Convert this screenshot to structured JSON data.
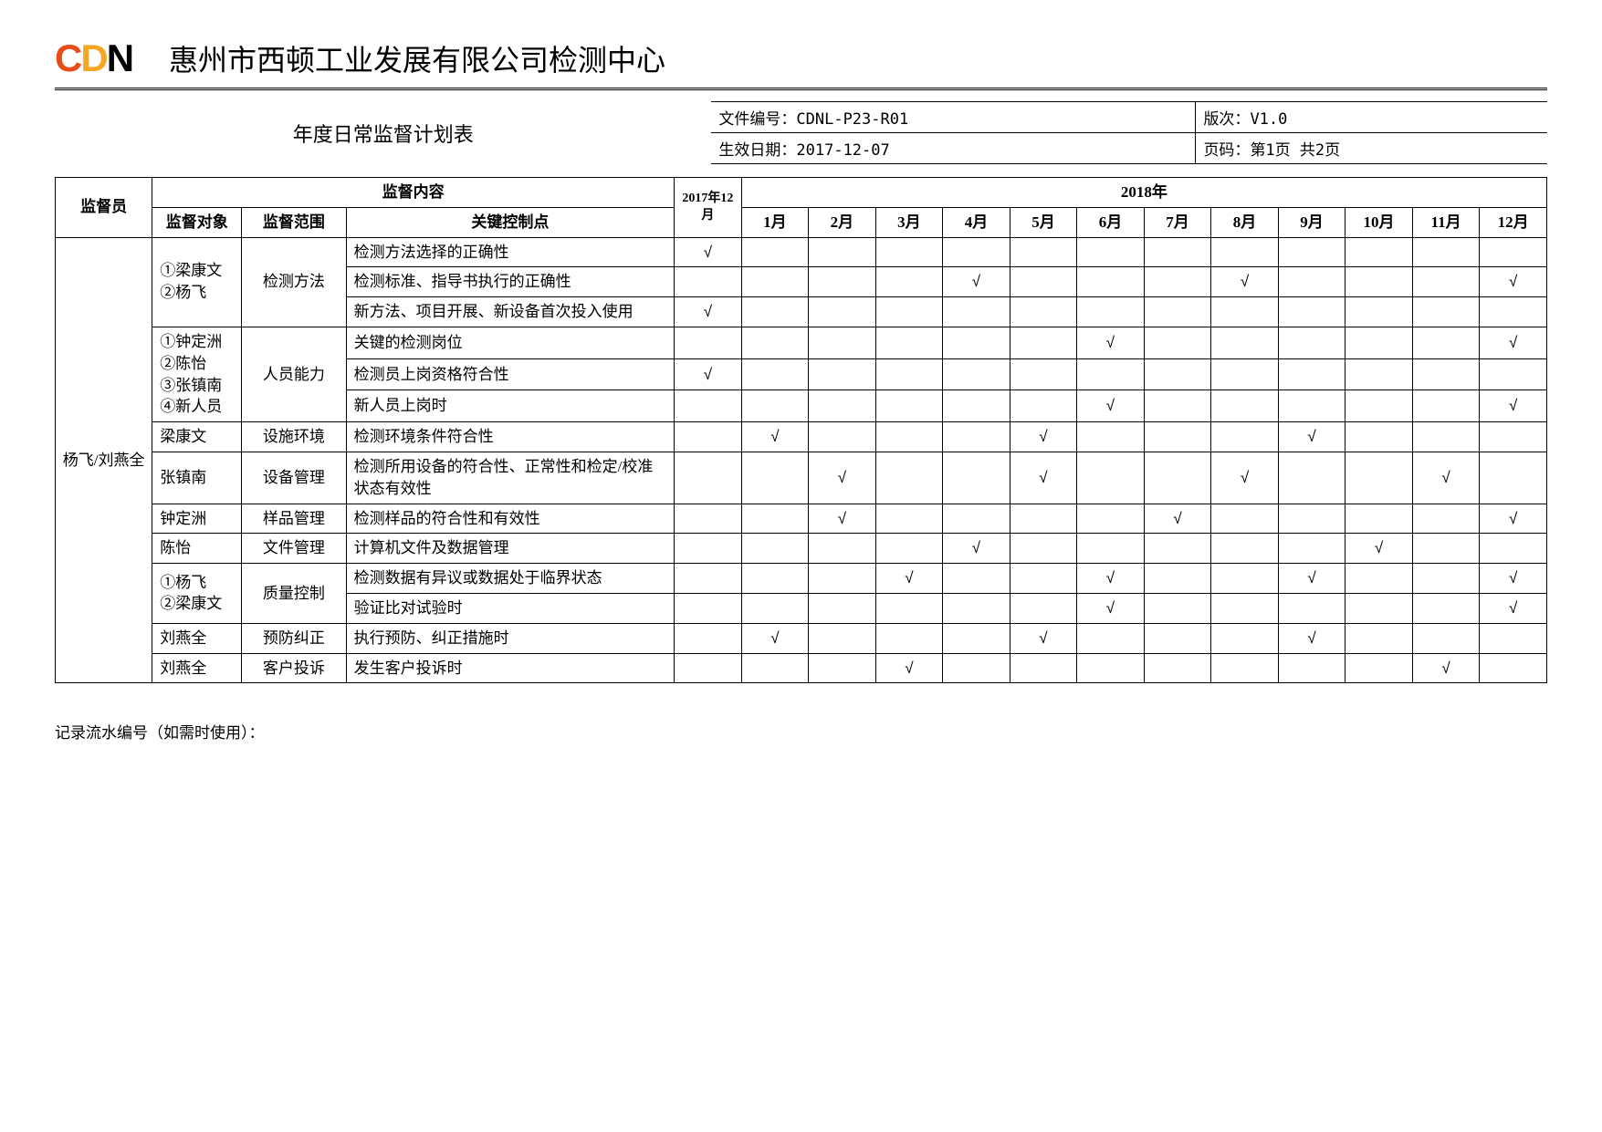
{
  "header": {
    "org_title": "惠州市西顿工业发展有限公司检测中心"
  },
  "meta": {
    "form_title": "年度日常监督计划表",
    "doc_no_label": "文件编号：",
    "doc_no": "CDNL-P23-R01",
    "version_label": "版次：",
    "version": "V1.0",
    "eff_date_label": "生效日期：",
    "eff_date": "2017-12-07",
    "page_label": "页码：",
    "page": "第1页 共2页"
  },
  "colhead": {
    "supervisor": "监督员",
    "content": "监督内容",
    "object": "监督对象",
    "scope": "监督范围",
    "keypoint": "关键控制点",
    "dec2017": "2017年12月",
    "year2018": "2018年",
    "m1": "1月",
    "m2": "2月",
    "m3": "3月",
    "m4": "4月",
    "m5": "5月",
    "m6": "6月",
    "m7": "7月",
    "m8": "8月",
    "m9": "9月",
    "m10": "10月",
    "m11": "11月",
    "m12": "12月"
  },
  "supervisor_name": "杨飞/刘燕全",
  "check": "√",
  "rows": [
    {
      "obj": "①梁康文\n②杨飞",
      "scope": "检测方法",
      "key": "检测方法选择的正确性",
      "marks": {
        "d17": true
      }
    },
    {
      "key": "检测标准、指导书执行的正确性",
      "marks": {
        "m4": true,
        "m8": true,
        "m12": true
      }
    },
    {
      "key": "新方法、项目开展、新设备首次投入使用",
      "marks": {
        "d17": true
      }
    },
    {
      "obj": "①钟定洲\n②陈怡\n③张镇南\n④新人员",
      "scope": "人员能力",
      "key": "关键的检测岗位",
      "marks": {
        "m6": true,
        "m12": true
      }
    },
    {
      "key": "检测员上岗资格符合性",
      "marks": {
        "d17": true
      }
    },
    {
      "key": "新人员上岗时",
      "marks": {
        "m6": true,
        "m12": true
      }
    },
    {
      "obj": "梁康文",
      "scope": "设施环境",
      "key": "检测环境条件符合性",
      "marks": {
        "m1": true,
        "m5": true,
        "m9": true
      }
    },
    {
      "obj": "张镇南",
      "scope": "设备管理",
      "key": "检测所用设备的符合性、正常性和检定/校准状态有效性",
      "marks": {
        "m2": true,
        "m5": true,
        "m8": true,
        "m11": true
      }
    },
    {
      "obj": "钟定洲",
      "scope": "样品管理",
      "key": "检测样品的符合性和有效性",
      "marks": {
        "m2": true,
        "m7": true,
        "m12": true
      }
    },
    {
      "obj": "陈怡",
      "scope": "文件管理",
      "key": "计算机文件及数据管理",
      "marks": {
        "m4": true,
        "m10": true
      }
    },
    {
      "obj": "①杨飞\n②梁康文",
      "scope": "质量控制",
      "key": "检测数据有异议或数据处于临界状态",
      "marks": {
        "m3": true,
        "m6": true,
        "m9": true,
        "m12": true
      }
    },
    {
      "key": "验证比对试验时",
      "marks": {
        "m6": true,
        "m12": true
      }
    },
    {
      "obj": "刘燕全",
      "scope": "预防纠正",
      "key": "执行预防、纠正措施时",
      "marks": {
        "m1": true,
        "m5": true,
        "m9": true
      }
    },
    {
      "obj": "刘燕全",
      "scope": "客户投诉",
      "key": "发生客户投诉时",
      "marks": {
        "m3": true,
        "m11": true
      }
    }
  ],
  "row_groups": [
    {
      "obj_span": 3,
      "scope_span": 3
    },
    {},
    {},
    {
      "obj_span": 3,
      "scope_span": 3
    },
    {},
    {},
    {
      "obj_span": 1,
      "scope_span": 1
    },
    {
      "obj_span": 1,
      "scope_span": 1
    },
    {
      "obj_span": 1,
      "scope_span": 1
    },
    {
      "obj_span": 1,
      "scope_span": 1
    },
    {
      "obj_span": 2,
      "scope_span": 2
    },
    {},
    {
      "obj_span": 1,
      "scope_span": 1
    },
    {
      "obj_span": 1,
      "scope_span": 1
    }
  ],
  "footnote": "记录流水编号（如需时使用）："
}
